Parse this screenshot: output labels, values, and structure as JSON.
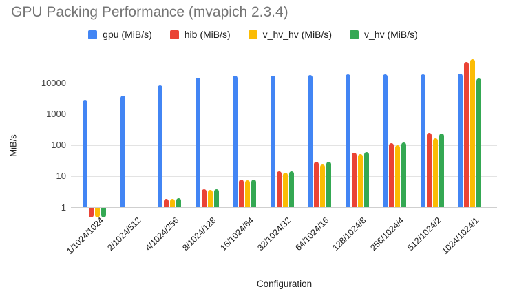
{
  "chart_data": {
    "type": "bar",
    "title": "GPU Packing Performance (mvapich 2.3.4)",
    "xlabel": "Configuration",
    "ylabel": "MiB/s",
    "y_scale": "log",
    "y_ticks": [
      1,
      10,
      100,
      1000,
      10000
    ],
    "ylim": [
      0.45,
      100000
    ],
    "grid": true,
    "legend_position": "top",
    "categories": [
      "1/1024/1024",
      "2/1024/512",
      "4/1024/256",
      "8/1024/128",
      "16/1024/64",
      "32/1024/32",
      "64/1024/16",
      "128/1024/8",
      "256/1024/4",
      "512/1024/2",
      "1024/1024/1"
    ],
    "series": [
      {
        "name": "gpu (MiB/s)",
        "color": "#4285F4",
        "values": [
          2700,
          3900,
          8300,
          14500,
          16500,
          16500,
          17500,
          18200,
          18800,
          18800,
          19800
        ]
      },
      {
        "name": "hib (MiB/s)",
        "color": "#EA4335",
        "values": [
          0.5,
          null,
          1.8,
          3.7,
          7.5,
          14.5,
          29,
          57,
          115,
          240,
          46000
        ]
      },
      {
        "name": "v_hv_hv (MiB/s)",
        "color": "#FBBC04",
        "values": [
          0.5,
          null,
          1.8,
          3.6,
          7.3,
          13,
          24,
          50,
          100,
          165,
          57000
        ]
      },
      {
        "name": "v_hv (MiB/s)",
        "color": "#34A853",
        "values": [
          0.5,
          null,
          1.9,
          3.7,
          7.5,
          14.5,
          29,
          60,
          120,
          230,
          13500
        ]
      }
    ]
  }
}
